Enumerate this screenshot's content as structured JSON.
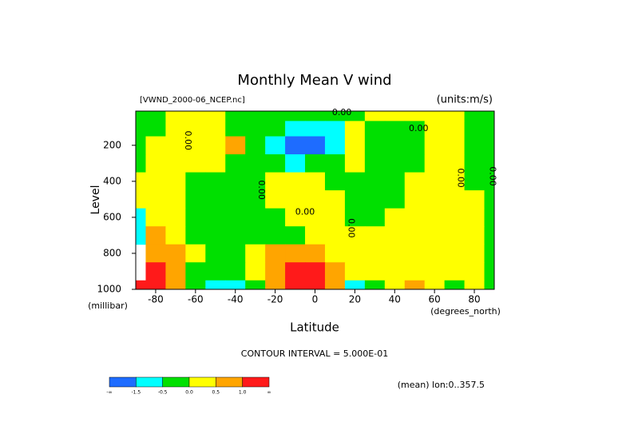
{
  "chart_data": {
    "type": "contour",
    "title": "Monthly Mean V wind",
    "subtitle": "[VWND_2000-06_NCEP.nc]",
    "units": "(units:m/s)",
    "x_label": "Latitude",
    "x_units": "(degrees_north)",
    "y_label": "Level",
    "y_units": "(millibar)",
    "footer": "CONTOUR INTERVAL = 5.000E-01",
    "note": "(mean) lon:0..357.5",
    "xlim": [
      -90,
      90
    ],
    "xticks": [
      -80,
      -60,
      -40,
      -20,
      0,
      20,
      40,
      60,
      80
    ],
    "ylim": [
      1000,
      10
    ],
    "yticks": [
      200,
      400,
      600,
      800,
      1000
    ],
    "x": [
      -90,
      -80,
      -70,
      -60,
      -50,
      -40,
      -30,
      -20,
      -10,
      0,
      10,
      20,
      30,
      40,
      50,
      60,
      70,
      80,
      90
    ],
    "levels": [
      30,
      100,
      200,
      300,
      400,
      500,
      600,
      700,
      800,
      900,
      1000
    ],
    "values": [
      [
        -0.1,
        -0.1,
        0.2,
        0.2,
        0.1,
        -0.1,
        -0.1,
        -0.2,
        -0.3,
        -0.3,
        -0.2,
        -0.1,
        0.1,
        0.2,
        0.1,
        0.1,
        0.1,
        -0.1,
        -0.1
      ],
      [
        -0.2,
        -0.2,
        0.3,
        0.3,
        0.2,
        -0.2,
        -0.3,
        -0.4,
        -0.8,
        -1.0,
        -0.6,
        0.2,
        -0.1,
        -0.2,
        -0.1,
        0.2,
        0.2,
        -0.2,
        -0.2
      ],
      [
        -0.2,
        0.2,
        0.3,
        0.4,
        0.2,
        0.6,
        -0.2,
        -0.6,
        -1.6,
        -1.8,
        -0.8,
        0.2,
        -0.2,
        -0.2,
        -0.2,
        0.2,
        0.2,
        -0.2,
        -0.2
      ],
      [
        -0.2,
        0.2,
        0.3,
        0.3,
        0.2,
        -0.2,
        -0.3,
        -0.4,
        -0.6,
        -0.4,
        -0.2,
        0.2,
        -0.2,
        -0.2,
        -0.2,
        0.2,
        0.2,
        -0.2,
        -0.2
      ],
      [
        0.2,
        0.2,
        0.3,
        -0.2,
        -0.2,
        -0.2,
        -0.2,
        0.1,
        0.2,
        0.2,
        -0.1,
        -0.2,
        -0.2,
        -0.2,
        0.2,
        0.2,
        0.2,
        -0.2,
        -0.2
      ],
      [
        0.2,
        0.2,
        0.3,
        -0.2,
        -0.2,
        -0.3,
        -0.2,
        0.2,
        0.3,
        0.3,
        0.2,
        -0.2,
        -0.2,
        -0.2,
        0.2,
        0.2,
        0.2,
        0.1,
        -0.2
      ],
      [
        -0.8,
        0.2,
        0.2,
        -0.2,
        -0.3,
        -0.3,
        -0.2,
        -0.1,
        0.2,
        0.2,
        0.1,
        -0.1,
        -0.2,
        0.1,
        0.2,
        0.1,
        0.2,
        0.2,
        -0.2
      ],
      [
        -0.8,
        0.6,
        0.3,
        -0.2,
        -0.2,
        -0.2,
        -0.2,
        -0.2,
        -0.2,
        0.2,
        0.2,
        0.2,
        0.2,
        0.2,
        0.2,
        0.2,
        0.2,
        0.2,
        -0.2
      ],
      [
        null,
        0.8,
        0.6,
        0.2,
        -0.2,
        -0.2,
        0.2,
        0.6,
        0.6,
        0.6,
        0.3,
        0.2,
        0.2,
        0.2,
        0.2,
        0.2,
        0.2,
        0.2,
        -0.2
      ],
      [
        null,
        1.4,
        0.7,
        -0.2,
        -0.3,
        -0.2,
        0.3,
        0.8,
        1.3,
        1.2,
        0.6,
        0.2,
        0.2,
        0.3,
        0.3,
        0.2,
        0.2,
        0.2,
        -0.2
      ],
      [
        1.5,
        1.8,
        0.8,
        -0.3,
        -0.8,
        -0.8,
        -0.3,
        0.7,
        1.8,
        1.8,
        0.8,
        -0.6,
        -0.3,
        0.3,
        0.7,
        0.3,
        -0.2,
        0.2,
        -0.2
      ]
    ],
    "color_levels": [
      -1.5,
      -0.5,
      0,
      0.5,
      1.0
    ],
    "colors": [
      "#1e6cff",
      "#00ffff",
      "#00e000",
      "#ffff00",
      "#ffa500",
      "#ff1a1a"
    ],
    "colorbar_labels": [
      "-∞",
      "-1.5",
      "-0.5",
      "0.0",
      "0.5",
      "1.0",
      "∞"
    ],
    "contour_labels": [
      {
        "text": "0.00",
        "x": 13.5,
        "y": 19,
        "rotated": false
      },
      {
        "text": "0.00",
        "x": -64,
        "y": 173,
        "rotated": true
      },
      {
        "text": "0.00",
        "x": 52,
        "y": 107,
        "rotated": false
      },
      {
        "text": "0.00",
        "x": -27,
        "y": 448,
        "rotated": true
      },
      {
        "text": "0.00",
        "x": -5,
        "y": 571,
        "rotated": false
      },
      {
        "text": "0.00",
        "x": 18,
        "y": 660,
        "rotated": true
      },
      {
        "text": "0.00",
        "x": 73,
        "y": 381,
        "rotated": true
      },
      {
        "text": "0.00",
        "x": 89,
        "y": 372,
        "rotated": true
      }
    ]
  }
}
